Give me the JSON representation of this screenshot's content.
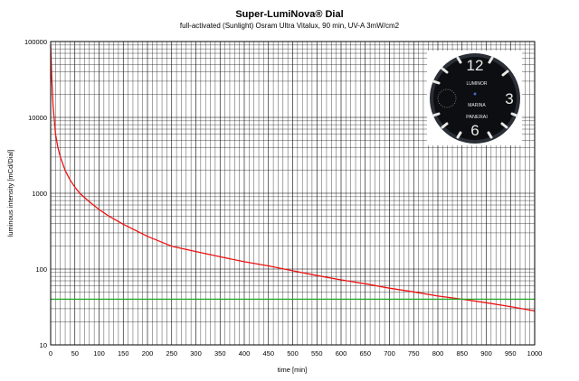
{
  "chart_data": {
    "type": "line",
    "title": "Super-LumiNova® Dial",
    "subtitle": "full-activated (Sunlight) Osram Ultra Vitalux, 90 min, UV-A 3mW/cm2",
    "xlabel": "time [min]",
    "ylabel": "luminous intensity [mCd/Dial]",
    "xlim": [
      0,
      1000
    ],
    "ylim": [
      10,
      100000
    ],
    "yscale": "log",
    "grid": true,
    "x_ticks": [
      "0",
      "50",
      "100",
      "150",
      "200",
      "250",
      "300",
      "350",
      "400",
      "450",
      "500",
      "550",
      "600",
      "650",
      "700",
      "750",
      "800",
      "850",
      "900",
      "950",
      "1000"
    ],
    "y_ticks": [
      "10",
      "100",
      "1000",
      "10000",
      "100000"
    ],
    "series": [
      {
        "color": "#ee1111",
        "x": [
          0,
          2,
          5,
          10,
          15,
          20,
          30,
          40,
          50,
          60,
          80,
          100,
          120,
          150,
          200,
          250,
          300,
          350,
          400,
          450,
          500,
          550,
          600,
          650,
          700,
          750,
          800,
          850,
          900,
          950,
          1000
        ],
        "values": [
          90000,
          35000,
          14000,
          6000,
          4000,
          3000,
          2000,
          1500,
          1200,
          1000,
          770,
          610,
          500,
          390,
          270,
          200,
          170,
          145,
          125,
          110,
          95,
          82,
          72,
          64,
          56,
          50,
          44,
          40,
          36,
          32,
          28
        ]
      },
      {
        "color": "#22aa22",
        "x": [
          0,
          1000
        ],
        "values": [
          40,
          40
        ]
      }
    ]
  },
  "image": {
    "dial": {
      "numerals": [
        "12",
        "3",
        "6"
      ],
      "brand_top": "LUMINOR",
      "brand_bottom": "MARINA",
      "brand_name": "PANERAI"
    }
  }
}
